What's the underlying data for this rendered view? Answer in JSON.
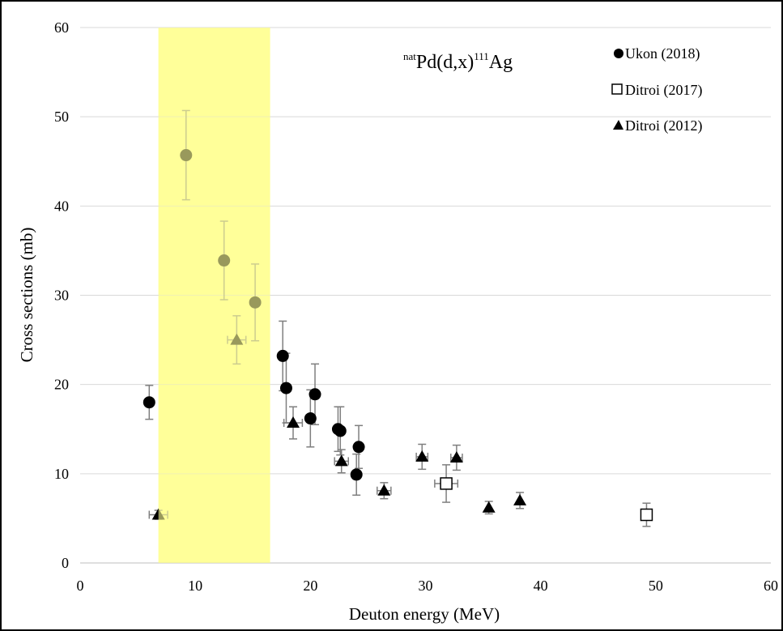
{
  "chart_data": {
    "type": "scatter",
    "title": "",
    "annotation": {
      "pre_sup": "nat",
      "element": "Pd(d,x)",
      "mid_sup": "111",
      "product": "Ag"
    },
    "xlabel": "Deuton energy (MeV)",
    "ylabel": "Cross sections (mb)",
    "xlim": [
      0,
      60
    ],
    "ylim": [
      0,
      60
    ],
    "xticks": [
      "0",
      "10",
      "20",
      "30",
      "40",
      "50",
      "60"
    ],
    "yticks": [
      "0",
      "10",
      "20",
      "30",
      "40",
      "50",
      "60"
    ],
    "grid": "horizontal",
    "legend_position": "top-right",
    "highlight_band": {
      "x": [
        6.8,
        16.5
      ],
      "color": "#ffff99",
      "opacity": 0.6
    },
    "error_bar_color": "#7f7f7f",
    "series": [
      {
        "name": "Ukon (2018)",
        "marker": "circle",
        "color": "#000000",
        "points": [
          {
            "x": 6.0,
            "y": 18.0,
            "yerr": 1.9
          },
          {
            "x": 9.2,
            "y": 45.7,
            "yerr": 5.0
          },
          {
            "x": 12.5,
            "y": 33.9,
            "yerr": 4.4
          },
          {
            "x": 15.2,
            "y": 29.2,
            "yerr": 4.3
          },
          {
            "x": 17.6,
            "y": 23.2,
            "yerr": 3.9
          },
          {
            "x": 17.9,
            "y": 19.6,
            "yerr": 3.9
          },
          {
            "x": 20.0,
            "y": 16.2,
            "yerr": 3.2
          },
          {
            "x": 20.4,
            "y": 18.9,
            "yerr": 3.4
          },
          {
            "x": 22.4,
            "y": 15.0,
            "yerr": 2.5
          },
          {
            "x": 22.6,
            "y": 14.8,
            "yerr": 2.7
          },
          {
            "x": 24.0,
            "y": 9.9,
            "yerr": 2.3
          },
          {
            "x": 24.2,
            "y": 13.0,
            "yerr": 2.4
          }
        ]
      },
      {
        "name": "Ditroi (2017)",
        "marker": "square-open",
        "color": "#000000",
        "points": [
          {
            "x": 31.8,
            "y": 8.9,
            "yerr": 2.1,
            "xerr": 1.0
          },
          {
            "x": 49.2,
            "y": 5.4,
            "yerr": 1.3
          }
        ]
      },
      {
        "name": "Ditroi (2012)",
        "marker": "triangle",
        "color": "#000000",
        "points": [
          {
            "x": 6.8,
            "y": 5.4,
            "yerr": 0.5,
            "xerr": 0.8
          },
          {
            "x": 13.6,
            "y": 25.0,
            "yerr": 2.7,
            "xerr": 0.8
          },
          {
            "x": 18.5,
            "y": 15.7,
            "yerr": 1.8,
            "xerr": 0.8
          },
          {
            "x": 22.7,
            "y": 11.4,
            "yerr": 1.3,
            "xerr": 0.6
          },
          {
            "x": 26.4,
            "y": 8.1,
            "yerr": 0.9,
            "xerr": 0.6
          },
          {
            "x": 29.7,
            "y": 11.9,
            "yerr": 1.4,
            "xerr": 0.5
          },
          {
            "x": 32.7,
            "y": 11.8,
            "yerr": 1.4,
            "xerr": 0.5
          },
          {
            "x": 35.5,
            "y": 6.2,
            "yerr": 0.7
          },
          {
            "x": 38.2,
            "y": 7.0,
            "yerr": 0.9
          }
        ]
      }
    ]
  }
}
